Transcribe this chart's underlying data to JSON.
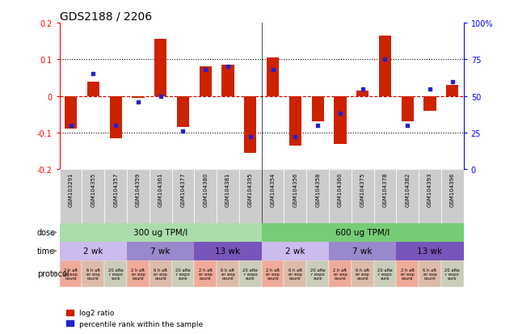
{
  "title": "GDS2188 / 2206",
  "samples": [
    "GSM103291",
    "GSM104355",
    "GSM104357",
    "GSM104359",
    "GSM104361",
    "GSM104377",
    "GSM104380",
    "GSM104381",
    "GSM104395",
    "GSM104354",
    "GSM104356",
    "GSM104358",
    "GSM104360",
    "GSM104375",
    "GSM104378",
    "GSM104382",
    "GSM104393",
    "GSM104396"
  ],
  "log2_ratio": [
    -0.09,
    0.04,
    -0.115,
    -0.005,
    0.155,
    -0.085,
    0.08,
    0.085,
    -0.155,
    0.105,
    -0.135,
    -0.07,
    -0.13,
    0.015,
    0.165,
    -0.07,
    -0.04,
    0.03
  ],
  "percentile": [
    30,
    65,
    30,
    46,
    50,
    26,
    68,
    70,
    22,
    68,
    22,
    30,
    38,
    55,
    75,
    30,
    55,
    60
  ],
  "bar_color": "#cc2200",
  "dot_color": "#2222cc",
  "ylim_left": [
    -0.2,
    0.2
  ],
  "ylim_right": [
    0,
    100
  ],
  "yticks_left": [
    -0.2,
    -0.1,
    0.0,
    0.1,
    0.2
  ],
  "yticks_right": [
    0,
    25,
    50,
    75,
    100
  ],
  "ytick_labels_right": [
    "0",
    "25",
    "50",
    "75",
    "100%"
  ],
  "dose_colors": [
    "#aaddaa",
    "#77cc77"
  ],
  "dose_labels_text": [
    "300 ug TPM/l",
    "600 ug TPM/l"
  ],
  "dose_starts": [
    0,
    9
  ],
  "dose_ends": [
    9,
    18
  ],
  "time_colors": [
    "#ccbbee",
    "#9988cc",
    "#7755bb"
  ],
  "time_labels_text": [
    "2 wk",
    "7 wk",
    "13 wk"
  ],
  "time_starts": [
    0,
    3,
    6,
    9,
    12,
    15
  ],
  "time_ends": [
    3,
    6,
    9,
    12,
    15,
    18
  ],
  "time_color_idx": [
    0,
    1,
    2,
    0,
    1,
    2
  ],
  "protocol_colors": [
    "#f0aa99",
    "#ddbbaa",
    "#ccccbb"
  ],
  "prot_texts": [
    "2 h aft\ner exp\nosure",
    "6 h aft\ner exp\nosure",
    "20 afte\nr expo\nsure"
  ],
  "sample_bg": "#cccccc",
  "row_labels": [
    "dose",
    "time",
    "protocol"
  ],
  "arrow_color": "#888888",
  "bg_color": "#ffffff",
  "zero_line_color": "#cc0000",
  "label_fontsize": 7,
  "title_fontsize": 10
}
